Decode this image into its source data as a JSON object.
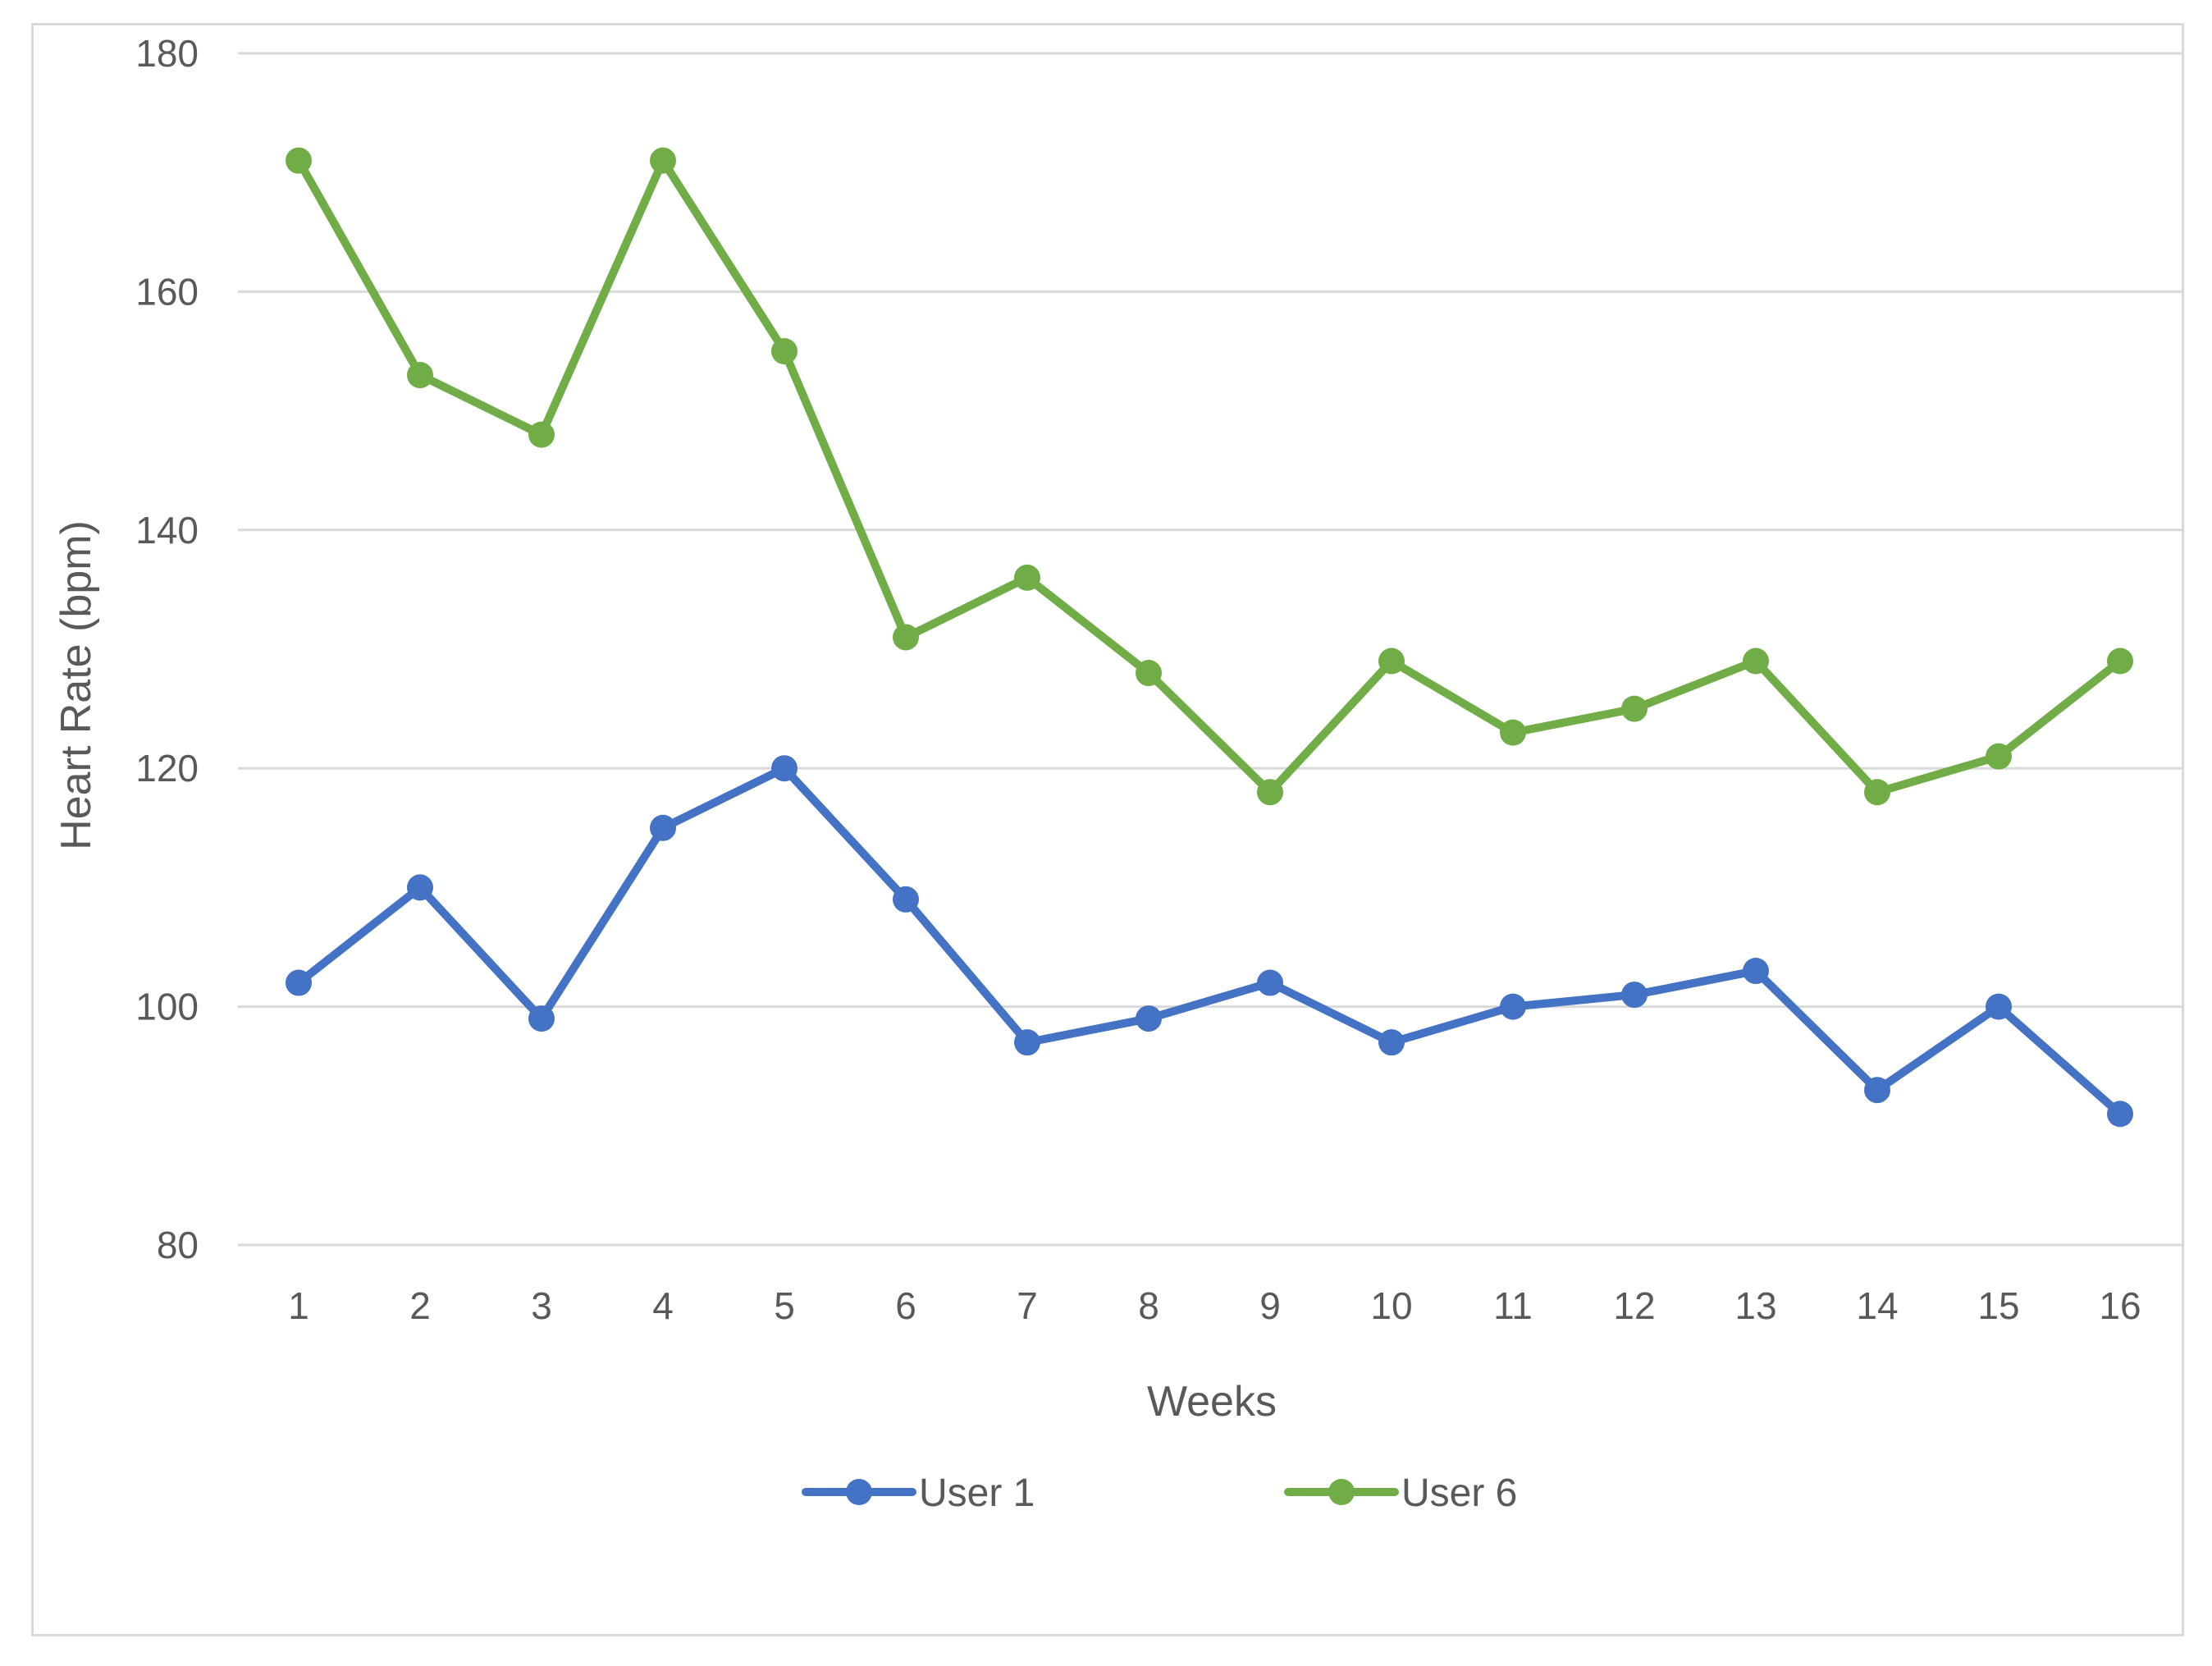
{
  "chart_data": {
    "type": "line",
    "title": "",
    "xlabel": "Weeks",
    "ylabel": "Heart Rate (bpm)",
    "categories": [
      "1",
      "2",
      "3",
      "4",
      "5",
      "6",
      "7",
      "8",
      "9",
      "10",
      "11",
      "12",
      "13",
      "14",
      "15",
      "16"
    ],
    "ylim": [
      80,
      180
    ],
    "yticks": [
      80,
      100,
      120,
      140,
      160,
      180
    ],
    "grid": true,
    "legend_position": "bottom",
    "series": [
      {
        "name": "User 1",
        "color": "#4472c4",
        "values": [
          102,
          110,
          99,
          115,
          120,
          109,
          97,
          99,
          102,
          97,
          100,
          101,
          103,
          93,
          100,
          91
        ]
      },
      {
        "name": "User 6",
        "color": "#70ad47",
        "values": [
          171,
          153,
          148,
          171,
          155,
          131,
          136,
          128,
          118,
          129,
          123,
          125,
          129,
          118,
          121,
          129
        ]
      }
    ]
  }
}
